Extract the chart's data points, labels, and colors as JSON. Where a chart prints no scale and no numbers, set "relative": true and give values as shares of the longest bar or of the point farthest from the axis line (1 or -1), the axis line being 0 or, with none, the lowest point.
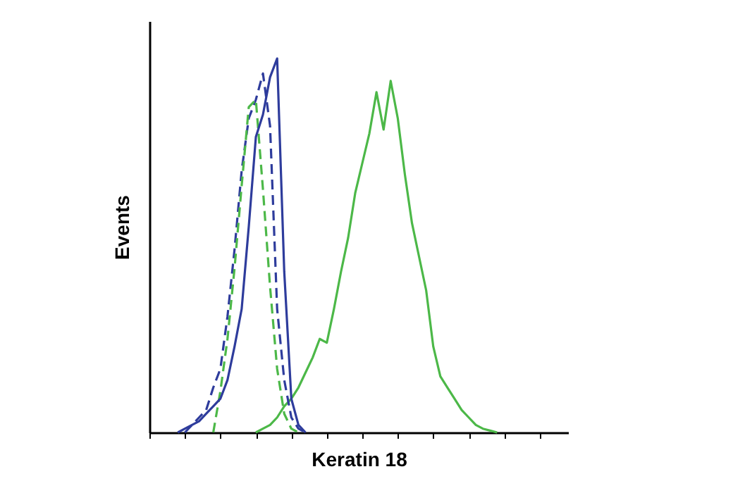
{
  "chart_data": {
    "type": "line",
    "relative": true,
    "xlabel": "Keratin 18",
    "ylabel": "Events",
    "grid": false,
    "tick_labels": false,
    "categories": [
      null,
      null,
      null,
      null,
      null,
      null,
      null,
      null,
      null,
      null,
      null,
      null,
      null,
      null,
      null,
      null,
      null,
      null,
      null,
      null,
      null,
      null,
      null,
      null,
      null,
      null,
      null,
      null,
      null,
      null,
      null,
      null,
      null,
      null,
      null,
      null,
      null,
      null,
      null,
      null,
      null,
      null,
      null,
      null,
      null,
      null,
      null,
      null,
      null,
      null,
      null,
      null,
      null,
      null,
      null,
      null,
      null,
      null,
      null,
      null
    ],
    "series": [
      {
        "color": "#4cb848",
        "line_style": "solid",
        "values": [
          null,
          null,
          null,
          null,
          null,
          null,
          null,
          null,
          null,
          null,
          null,
          null,
          null,
          null,
          null,
          0,
          0.01,
          0.02,
          0.04,
          0.07,
          0.09,
          0.12,
          0.16,
          0.2,
          0.25,
          0.24,
          0.33,
          0.43,
          0.52,
          0.64,
          0.72,
          0.8,
          0.91,
          0.81,
          0.94,
          0.84,
          0.69,
          0.56,
          0.47,
          0.38,
          0.23,
          0.15,
          0.12,
          0.09,
          0.06,
          0.04,
          0.02,
          0.01,
          0.005,
          0,
          null,
          null,
          null,
          null,
          null,
          null,
          null,
          null,
          null,
          null
        ]
      },
      {
        "color": "#2e3c9c",
        "line_style": "dashed",
        "values": [
          null,
          null,
          null,
          null,
          null,
          0,
          0.02,
          0.04,
          0.06,
          0.12,
          0.17,
          0.31,
          0.49,
          0.7,
          0.84,
          0.89,
          0.96,
          0.82,
          0.33,
          0.14,
          0.04,
          0.01,
          0,
          null,
          null,
          null,
          null,
          null,
          null,
          null,
          null,
          null,
          null,
          null,
          null,
          null,
          null,
          null,
          null,
          null,
          null,
          null,
          null,
          null,
          null,
          null,
          null,
          null,
          null,
          null,
          null,
          null,
          null,
          null,
          null,
          null,
          null,
          null,
          null,
          null
        ]
      },
      {
        "color": "#4cb848",
        "line_style": "dashed",
        "values": [
          null,
          null,
          null,
          null,
          null,
          null,
          null,
          null,
          null,
          0,
          0.11,
          0.25,
          0.44,
          0.66,
          0.87,
          0.89,
          0.65,
          0.39,
          0.17,
          0.05,
          0.01,
          0,
          null,
          null,
          null,
          null,
          null,
          null,
          null,
          null,
          null,
          null,
          null,
          null,
          null,
          null,
          null,
          null,
          null,
          null,
          null,
          null,
          null,
          null,
          null,
          null,
          null,
          null,
          null,
          null,
          null,
          null,
          null,
          null,
          null,
          null,
          null,
          null,
          null,
          null
        ]
      },
      {
        "color": "#2e3c9c",
        "line_style": "solid",
        "values": [
          null,
          null,
          null,
          null,
          0,
          0.01,
          0.02,
          0.03,
          0.05,
          0.07,
          0.09,
          0.14,
          0.23,
          0.33,
          0.55,
          0.79,
          0.85,
          0.95,
          1.0,
          0.43,
          0.09,
          0.02,
          0,
          null,
          null,
          null,
          null,
          null,
          null,
          null,
          null,
          null,
          null,
          null,
          null,
          null,
          null,
          null,
          null,
          null,
          null,
          null,
          null,
          null,
          null,
          null,
          null,
          null,
          null,
          null,
          null,
          null,
          null,
          null,
          null,
          null,
          null,
          null,
          null,
          null
        ]
      }
    ]
  }
}
